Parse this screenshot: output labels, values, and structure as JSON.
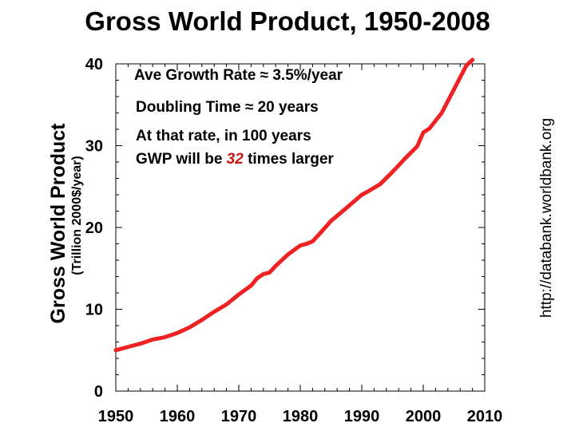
{
  "chart_data": {
    "type": "line",
    "title": "Gross World Product, 1950-2008",
    "ylabel": "Gross World Product",
    "ylabel_units": "(Trillion 2000$/year)",
    "xlabel": "",
    "xlim": [
      1950,
      2010
    ],
    "ylim": [
      0,
      40
    ],
    "xticks": [
      "1950",
      "1960",
      "1970",
      "1980",
      "1990",
      "2000",
      "2010"
    ],
    "yticks": [
      "0",
      "10",
      "20",
      "30",
      "40"
    ],
    "x_minor_step": 2,
    "y_minor_step": 2,
    "series": [
      {
        "name": "GWP",
        "color": "#ee2222",
        "x": [
          1950,
          1952,
          1954,
          1956,
          1958,
          1960,
          1962,
          1964,
          1966,
          1968,
          1970,
          1972,
          1973,
          1974,
          1975,
          1976,
          1978,
          1980,
          1981,
          1982,
          1983,
          1985,
          1988,
          1990,
          1991,
          1993,
          1995,
          1997,
          1999,
          2000,
          2001,
          2003,
          2005,
          2007,
          2008
        ],
        "values": [
          5.0,
          5.4,
          5.8,
          6.3,
          6.6,
          7.1,
          7.8,
          8.7,
          9.7,
          10.6,
          11.8,
          12.9,
          13.8,
          14.3,
          14.5,
          15.3,
          16.7,
          17.8,
          18.0,
          18.3,
          19.1,
          20.8,
          22.7,
          24.0,
          24.4,
          25.3,
          26.8,
          28.4,
          29.9,
          31.6,
          32.1,
          34.0,
          36.9,
          39.8,
          40.5
        ]
      }
    ],
    "annotations": {
      "growth_rate": "Ave Growth Rate ≈ 3.5%/year",
      "doubling_time": "Doubling Time ≈ 20 years",
      "projection_line1": "At that rate, in 100 years",
      "projection_line2_prefix": "GWP will be ",
      "projection_highlight": "32",
      "projection_line2_suffix": " times larger",
      "highlight_color": "#cc1111"
    },
    "source": "http://databank.worldbank.org"
  }
}
